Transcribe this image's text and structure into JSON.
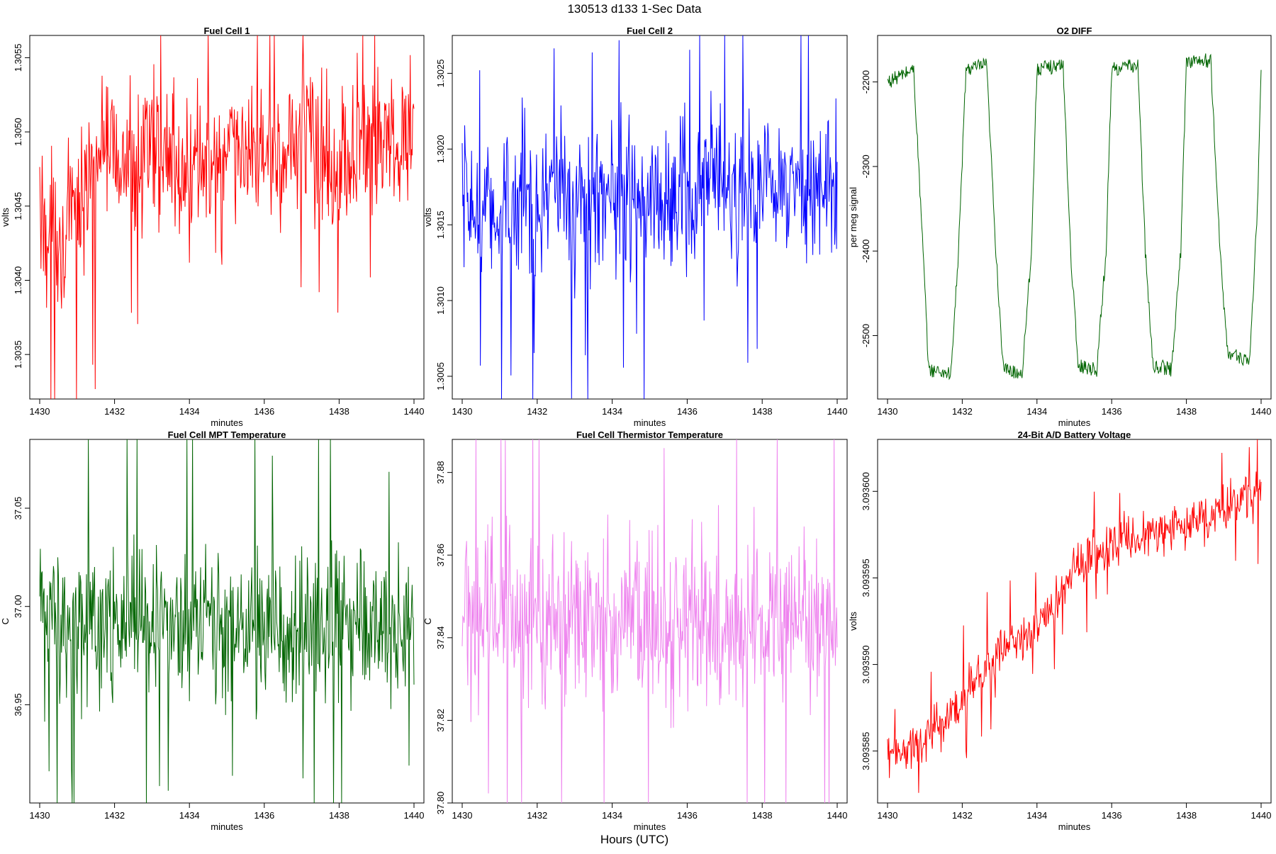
{
  "figure": {
    "title": "130513   d133   1-Sec Data",
    "outer_xlabel": "Hours (UTC)"
  },
  "chart_data": [
    {
      "type": "line",
      "title": "Fuel Cell 1",
      "xlabel": "minutes",
      "ylabel": "volts",
      "xlim": [
        1430,
        1440
      ],
      "ylim": [
        1.3032,
        1.30565
      ],
      "xticks": [
        "1430",
        "1432",
        "1434",
        "1436",
        "1438",
        "1440"
      ],
      "yticks": [
        "1.3035",
        "1.3040",
        "1.3045",
        "1.3050",
        "1.3055"
      ],
      "color": "#ff0000",
      "series": [
        {
          "base": 1.30475,
          "amp": 0.00045,
          "trend": 0.0003,
          "x": [
            1430.0,
            1430.6,
            1431.6,
            1432.6,
            1433.2,
            1433.7,
            1434.7,
            1435.6,
            1436.6,
            1437.2,
            1437.9,
            1438.6,
            1439.1,
            1439.7,
            1440.0
          ],
          "y": [
            1.30445,
            1.3042,
            1.3049,
            1.30475,
            1.3049,
            1.3047,
            1.30475,
            1.3049,
            1.30485,
            1.305,
            1.3048,
            1.3049,
            1.305,
            1.3049,
            1.3051
          ]
        }
      ]
    },
    {
      "type": "line",
      "title": "Fuel Cell 2",
      "xlabel": "minutes",
      "ylabel": "volts",
      "xlim": [
        1430,
        1440
      ],
      "ylim": [
        1.30035,
        1.30275
      ],
      "xticks": [
        "1430",
        "1432",
        "1434",
        "1436",
        "1438",
        "1440"
      ],
      "yticks": [
        "1.3005",
        "1.3010",
        "1.3015",
        "1.3020",
        "1.3025"
      ],
      "color": "#0000ff",
      "series": [
        {
          "base": 1.30165,
          "amp": 0.00045,
          "trend": 0.0001,
          "x": [
            1430.0,
            1430.6,
            1431.6,
            1432.6,
            1433.2,
            1433.7,
            1434.7,
            1435.6,
            1436.6,
            1437.2,
            1437.9,
            1438.6,
            1439.1,
            1439.7,
            1440.0
          ],
          "y": [
            1.3016,
            1.30155,
            1.3017,
            1.30175,
            1.3016,
            1.30165,
            1.3017,
            1.3016,
            1.3018,
            1.30165,
            1.3017,
            1.3018,
            1.30165,
            1.3017,
            1.3018
          ]
        }
      ]
    },
    {
      "type": "line",
      "title": "O2 DIFF",
      "xlabel": "minutes",
      "ylabel": "per meg signal",
      "xlim": [
        1430,
        1440
      ],
      "ylim": [
        -2575,
        -2145
      ],
      "xticks": [
        "1430",
        "1432",
        "1434",
        "1436",
        "1438",
        "1440"
      ],
      "yticks": [
        "-2500",
        "-2400",
        "-2300",
        "-2200"
      ],
      "color": "#006400",
      "series": [
        {
          "x": [
            1430.0,
            1430.7,
            1430.95,
            1431.1,
            1431.7,
            1431.9,
            1432.1,
            1432.65,
            1432.9,
            1433.1,
            1433.6,
            1433.85,
            1434.0,
            1434.7,
            1434.9,
            1435.1,
            1435.6,
            1435.85,
            1436.0,
            1436.7,
            1436.9,
            1437.1,
            1437.6,
            1437.85,
            1438.0,
            1438.65,
            1438.9,
            1439.1,
            1439.7,
            1439.9,
            1440.0
          ],
          "y": [
            -2200,
            -2185,
            -2400,
            -2540,
            -2545,
            -2400,
            -2185,
            -2180,
            -2400,
            -2540,
            -2545,
            -2400,
            -2185,
            -2180,
            -2400,
            -2535,
            -2540,
            -2400,
            -2185,
            -2180,
            -2400,
            -2535,
            -2540,
            -2400,
            -2175,
            -2175,
            -2400,
            -2520,
            -2530,
            -2350,
            -2185
          ]
        }
      ]
    },
    {
      "type": "line",
      "title": "Fuel Cell MPT Temperature",
      "xlabel": "minutes",
      "ylabel": "C",
      "xlim": [
        1430,
        1440
      ],
      "ylim": [
        36.9,
        37.085
      ],
      "xticks": [
        "1430",
        "1432",
        "1434",
        "1436",
        "1438",
        "1440"
      ],
      "yticks": [
        "36.95",
        "37.00",
        "37.05"
      ],
      "color": "#006400",
      "series": [
        {
          "base": 36.99,
          "amp": 0.035,
          "x": [
            1430.0,
            1440.0
          ],
          "y": [
            36.99,
            36.99
          ]
        }
      ]
    },
    {
      "type": "line",
      "title": "Fuel Cell Thermistor Temperature",
      "xlabel": "minutes",
      "ylabel": "C",
      "xlim": [
        1430,
        1440
      ],
      "ylim": [
        37.8,
        37.888
      ],
      "xticks": [
        "1430",
        "1432",
        "1434",
        "1436",
        "1438",
        "1440"
      ],
      "yticks": [
        "37.80",
        "37.82",
        "37.84",
        "37.86",
        "37.88"
      ],
      "color": "#ee82ee",
      "series": [
        {
          "base": 37.845,
          "amp": 0.018,
          "x": [
            1430.0,
            1440.0
          ],
          "y": [
            37.845,
            37.845
          ]
        }
      ]
    },
    {
      "type": "line",
      "title": "24-Bit A/D Battery Voltage",
      "xlabel": "minutes",
      "ylabel": "volts",
      "xlim": [
        1430,
        1440
      ],
      "ylim": [
        3.093582,
        3.093603
      ],
      "xticks": [
        "1430",
        "1432",
        "1434",
        "1436",
        "1438",
        "1440"
      ],
      "yticks": [
        "3.093585",
        "3.093590",
        "3.093595",
        "3.093600"
      ],
      "color": "#ff0000",
      "series": [
        {
          "base": 0,
          "amp": 1.2e-06,
          "x": [
            1430.0,
            1431.0,
            1432.0,
            1433.0,
            1434.0,
            1435.0,
            1436.0,
            1437.0,
            1438.0,
            1439.0,
            1440.0
          ],
          "y": [
            3.0935845,
            3.0935855,
            3.093588,
            3.093591,
            3.093592,
            3.0935955,
            3.093597,
            3.0935975,
            3.093598,
            3.093599,
            3.0936
          ]
        }
      ]
    }
  ]
}
